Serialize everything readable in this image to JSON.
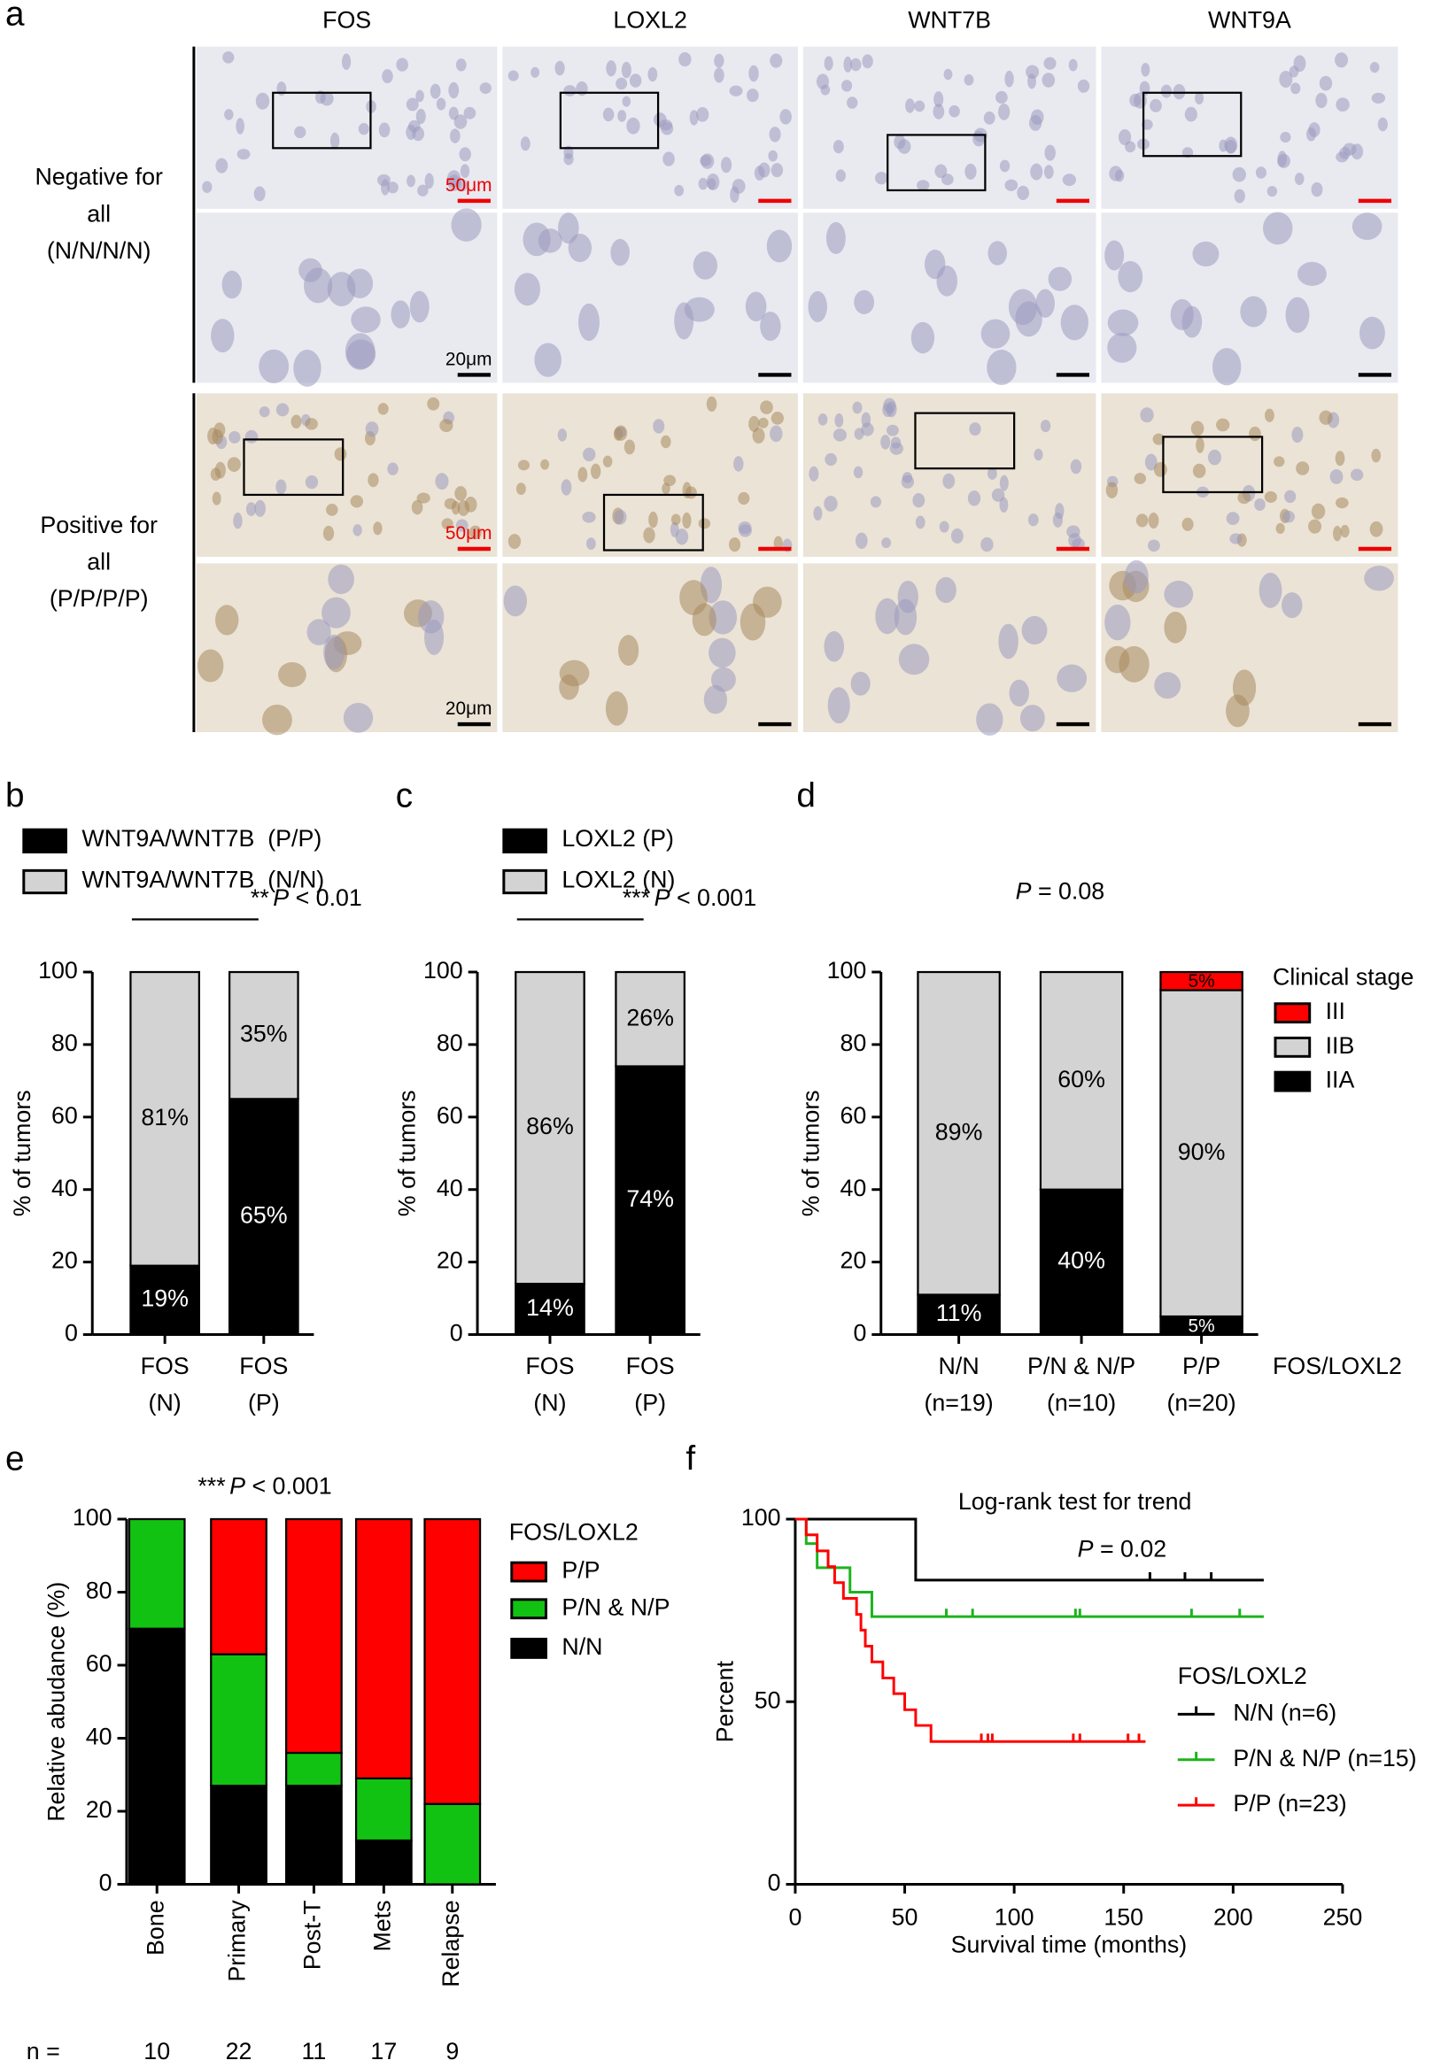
{
  "panel_a": {
    "label": "a",
    "columns": [
      "FOS",
      "LOXL2",
      "WNT7B",
      "WNT9A"
    ],
    "rows": [
      [
        "Negative for",
        "all",
        "(N/N/N/N)"
      ],
      [
        "Positive for",
        "all",
        "(P/P/P/P)"
      ]
    ],
    "scale_bar_low": "50μm",
    "scale_bar_high": "20μm"
  },
  "chart_data": [
    {
      "panel": "b",
      "type": "stacked_bar",
      "categories": [
        [
          "FOS",
          "(N)"
        ],
        [
          "FOS",
          "(P)"
        ]
      ],
      "ylabel": "% of tumors",
      "ylim": [
        0,
        100
      ],
      "yticks": [
        0,
        20,
        40,
        60,
        80,
        100
      ],
      "series": [
        {
          "name": "WNT9A/WNT7B  (P/P)",
          "color": "#000000",
          "values": [
            19,
            65
          ],
          "value_labels": [
            "19%",
            "65%"
          ]
        },
        {
          "name": "WNT9A/WNT7B  (N/N)",
          "color": "#d3d3d3",
          "values": [
            81,
            35
          ],
          "value_labels": [
            "81%",
            "35%"
          ]
        }
      ],
      "annotation": {
        "stars": "**",
        "p": "P",
        "text": "< 0.01"
      }
    },
    {
      "panel": "c",
      "type": "stacked_bar",
      "categories": [
        [
          "FOS",
          "(N)"
        ],
        [
          "FOS",
          "(P)"
        ]
      ],
      "ylabel": "% of tumors",
      "ylim": [
        0,
        100
      ],
      "yticks": [
        0,
        20,
        40,
        60,
        80,
        100
      ],
      "series": [
        {
          "name": "LOXL2 (P)",
          "color": "#000000",
          "values": [
            14,
            74
          ],
          "value_labels": [
            "14%",
            "74%"
          ]
        },
        {
          "name": "LOXL2 (N)",
          "color": "#d3d3d3",
          "values": [
            86,
            26
          ],
          "value_labels": [
            "86%",
            "26%"
          ]
        }
      ],
      "annotation": {
        "stars": "***",
        "p": "P",
        "text": "< 0.001"
      }
    },
    {
      "panel": "d",
      "type": "stacked_bar",
      "categories": [
        [
          "N/N",
          "(n=19)"
        ],
        [
          "P/N & N/P",
          "(n=10)"
        ],
        [
          "P/P",
          "(n=20)"
        ]
      ],
      "xlabel": "FOS/LOXL2",
      "ylabel": "% of tumors",
      "ylim": [
        0,
        100
      ],
      "yticks": [
        0,
        20,
        40,
        60,
        80,
        100
      ],
      "legend_title": "Clinical stage",
      "series": [
        {
          "name": "IIA",
          "color": "#000000",
          "values": [
            11,
            40,
            5
          ],
          "value_labels": [
            "11%",
            "40%",
            "5%"
          ]
        },
        {
          "name": "IIB",
          "color": "#d3d3d3",
          "values": [
            89,
            60,
            90
          ],
          "value_labels": [
            "89%",
            "60%",
            "90%"
          ]
        },
        {
          "name": "III",
          "color": "#ff0000",
          "values": [
            0,
            0,
            5
          ],
          "value_labels": [
            null,
            null,
            "5%"
          ]
        }
      ],
      "annotation": {
        "p": "P",
        "text": "= 0.08"
      }
    },
    {
      "panel": "e",
      "type": "stacked_bar",
      "categories": [
        "Bone",
        "Primary",
        "Post-T",
        "Mets",
        "Relapse"
      ],
      "xtick_rotation": -90,
      "ylabel": "Relative abudance (%)",
      "ylim": [
        0,
        100
      ],
      "yticks": [
        0,
        20,
        40,
        60,
        80,
        100
      ],
      "legend_title": "FOS/LOXL2",
      "series": [
        {
          "name": "N/N",
          "color": "#000000",
          "values": [
            70,
            27,
            27,
            12,
            0
          ]
        },
        {
          "name": "P/N & N/P",
          "color": "#12c212",
          "values": [
            30,
            36,
            9,
            17,
            22
          ]
        },
        {
          "name": "P/P",
          "color": "#ff0000",
          "values": [
            0,
            37,
            64,
            71,
            78
          ]
        }
      ],
      "annotation": {
        "stars": "***",
        "p": "P",
        "text": "< 0.001"
      },
      "n_label": "n =",
      "n": [
        10,
        22,
        11,
        17,
        9
      ]
    },
    {
      "panel": "f",
      "type": "km",
      "title": "Log-rank test for trend",
      "annotation": {
        "p": "P",
        "text": "= 0.02"
      },
      "xlabel": "Survival time (months)",
      "ylabel": "Percent",
      "xlim": [
        0,
        250
      ],
      "xticks": [
        0,
        50,
        100,
        150,
        200,
        250
      ],
      "ylim": [
        0,
        100
      ],
      "yticks": [
        0,
        50,
        100
      ],
      "legend_title": "FOS/LOXL2",
      "series": [
        {
          "name": "N/N (n=6)",
          "color": "#000000",
          "x": [
            0,
            55,
            214
          ],
          "values": [
            100,
            83.3,
            83.3
          ],
          "censor_x": [
            162,
            178,
            190
          ],
          "censor_values": [
            83.3,
            83.3,
            83.3
          ]
        },
        {
          "name": "P/N & N/P (n=15)",
          "color": "#1db31d",
          "x": [
            0,
            5,
            10,
            25,
            35,
            214
          ],
          "values": [
            100,
            93.3,
            86.7,
            80,
            73.3,
            73.3
          ],
          "censor_x": [
            69,
            81,
            128,
            130,
            181,
            203
          ],
          "censor_values": [
            73.3,
            73.3,
            73.3,
            73.3,
            73.3,
            73.3
          ]
        },
        {
          "name": "P/P (n=23)",
          "color": "#ff0000",
          "x": [
            0,
            5,
            10,
            15,
            18,
            22,
            28,
            30,
            32,
            35,
            40,
            45,
            50,
            55,
            62,
            160
          ],
          "values": [
            100,
            95.7,
            91.3,
            87,
            82.6,
            78.3,
            73.9,
            69.6,
            65.2,
            60.9,
            56.5,
            52.2,
            47.8,
            43.5,
            39.1,
            39.1
          ],
          "censor_x": [
            85,
            88,
            90,
            127,
            130,
            152,
            157
          ],
          "censor_values": [
            39.1,
            39.1,
            39.1,
            39.1,
            39.1,
            39.1,
            39.1
          ]
        }
      ]
    }
  ]
}
